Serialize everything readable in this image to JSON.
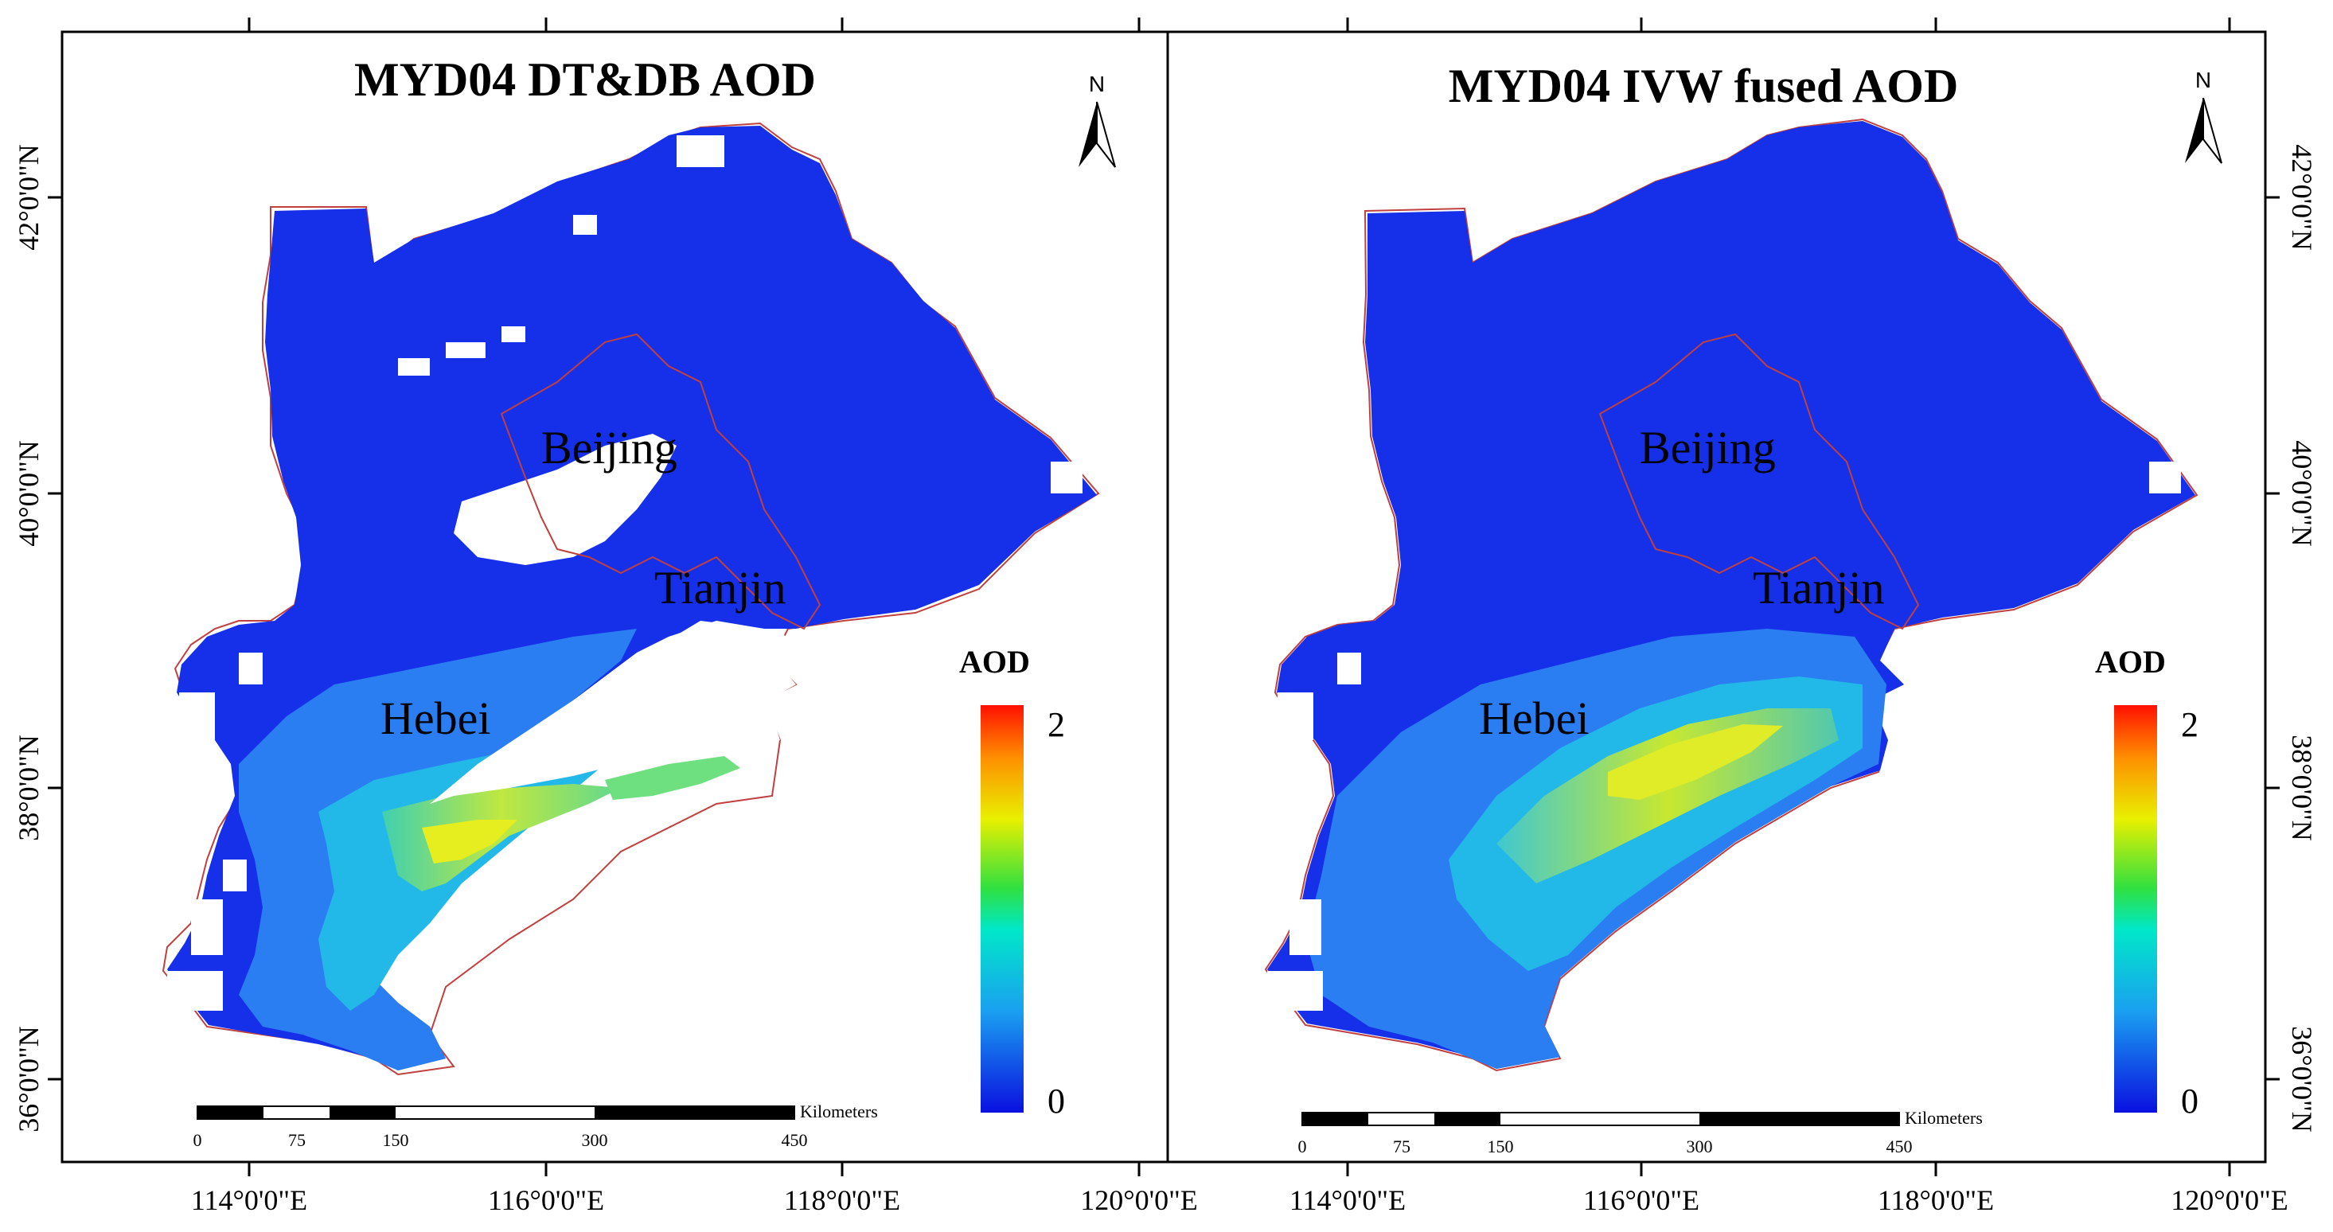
{
  "panels": [
    {
      "id": "left",
      "title": "MYD04 DT&DB AOD",
      "labels": {
        "beijing": "Beijing",
        "tianjin": "Tianjin",
        "hebei": "Hebei"
      },
      "legend": {
        "title": "AOD",
        "max": "2",
        "min": "0"
      },
      "scalebar": {
        "unit": "Kilometers",
        "ticks": [
          "0",
          "75",
          "150",
          "300",
          "450"
        ]
      },
      "north": "N"
    },
    {
      "id": "right",
      "title": "MYD04 IVW fused AOD",
      "labels": {
        "beijing": "Beijing",
        "tianjin": "Tianjin",
        "hebei": "Hebei"
      },
      "legend": {
        "title": "AOD",
        "max": "2",
        "min": "0"
      },
      "scalebar": {
        "unit": "Kilometers",
        "ticks": [
          "0",
          "75",
          "150",
          "300",
          "450"
        ]
      },
      "north": "N"
    }
  ],
  "axes": {
    "lon_ticks": [
      "114°0'0\"E",
      "116°0'0\"E",
      "118°0'0\"E",
      "120°0'0\"E"
    ],
    "lat_ticks": [
      "42°0'0\"N",
      "40°0'0\"N",
      "38°0'0\"N",
      "36°0'0\"N"
    ]
  },
  "colors": {
    "aod_low": "#0a1ee6",
    "aod_mid": "#00dcdc",
    "aod_green": "#30e040",
    "aod_yellow": "#ffff00",
    "aod_high": "#ff1000",
    "boundary": "#c04040",
    "frame": "#000000"
  }
}
